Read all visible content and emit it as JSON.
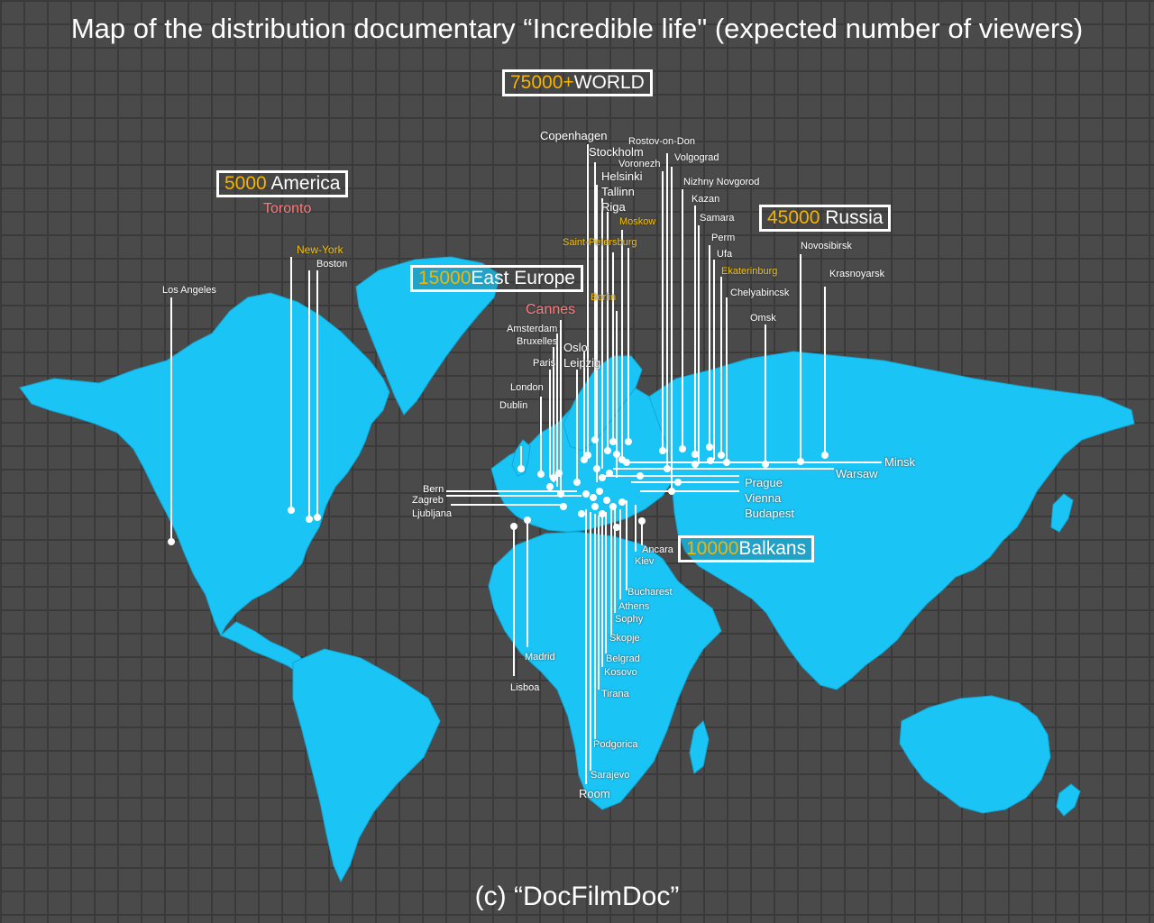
{
  "title": "Map of the distribution documentary “Incredible life\" (expected number of viewers)",
  "credit": "(c) “DocFilmDoc”",
  "colors": {
    "land": "#1ac4f5",
    "highlight": "#f5c000",
    "festival": "#ff7b7b",
    "background": "#4a4a4a"
  },
  "regions": [
    {
      "id": "world",
      "viewers": "75000+",
      "name": "WORLD"
    },
    {
      "id": "america",
      "viewers": "5000",
      "name": "America"
    },
    {
      "id": "east-europe",
      "viewers": "15000",
      "name": "East Europe"
    },
    {
      "id": "russia",
      "viewers": "45000",
      "name": "Russia"
    },
    {
      "id": "balkans",
      "viewers": "10000",
      "name": "Balkans"
    }
  ],
  "cities": {
    "toronto": "Toronto",
    "new_york": "New-York",
    "boston": "Boston",
    "los_angeles": "Los Angeles",
    "cannes": "Cannes",
    "amsterdam": "Amsterdam",
    "bruxelles": "Bruxelles",
    "paris": "Paris",
    "london": "London",
    "dublin": "Dublin",
    "oslo": "Oslo",
    "leipzig": "Leipzig",
    "berlin": "Berlin",
    "copenhagen": "Copenhagen",
    "stockholm": "Stockholm",
    "helsinki": "Helsinki",
    "tallinn": "Tallinn",
    "riga": "Riga",
    "saint_petersburg": "Saint-Petersburg",
    "moskow": "Moskow",
    "rostov": "Rostov-on-Don",
    "voronezh": "Voronezh",
    "volgograd": "Volgograd",
    "nizhny": "Nizhny Novgorod",
    "kazan": "Kazan",
    "samara": "Samara",
    "perm": "Perm",
    "ufa": "Ufa",
    "ekaterinburg": "Ekaterinburg",
    "chelyabinsk": "Chelyabincsk",
    "omsk": "Omsk",
    "novosibirsk": "Novosibirsk",
    "krasnoyarsk": "Krasnoyarsk",
    "minsk": "Minsk",
    "warsaw": "Warsaw",
    "prague": "Prague",
    "vienna": "Vienna",
    "budapest": "Budapest",
    "bern": "Bern",
    "zagreb": "Zagreb",
    "ljubljana": "Ljubljana",
    "ancara": "Ancara",
    "kiev": "Kiev",
    "bucharest": "Bucharest",
    "athens": "Athens",
    "sophy": "Sophy",
    "skopje": "Skopje",
    "belgrad": "Belgrad",
    "kosovo": "Kosovo",
    "tirana": "Tirana",
    "podgorica": "Podgorica",
    "sarajevo": "Sarajevo",
    "room": "Room",
    "madrid": "Madrid",
    "lisboa": "Lisboa"
  }
}
